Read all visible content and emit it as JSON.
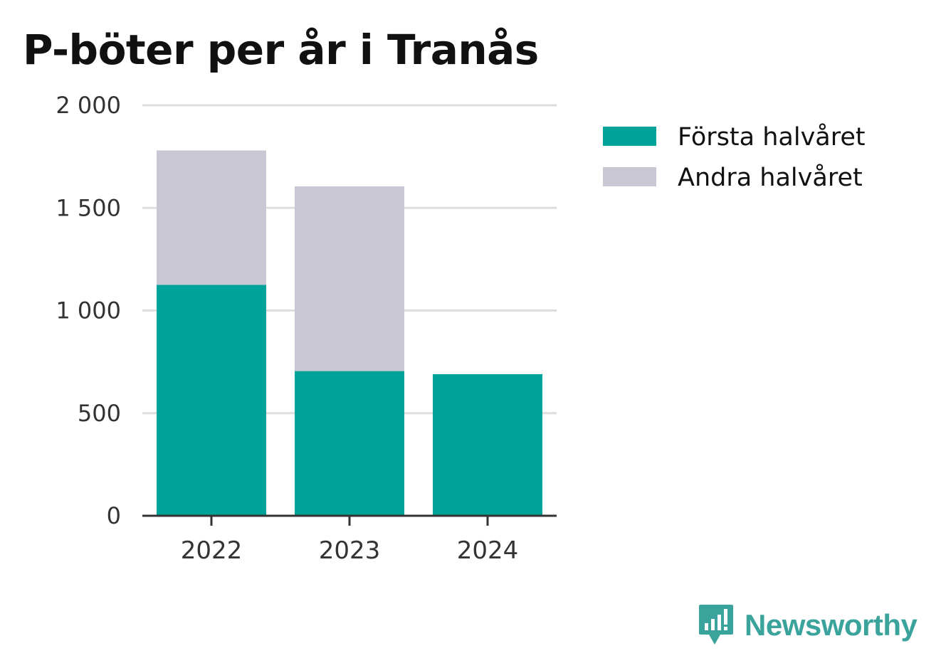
{
  "chart_data": {
    "type": "bar",
    "stacked": true,
    "title": "P-böter per år i Tranås",
    "categories": [
      "2022",
      "2023",
      "2024"
    ],
    "series": [
      {
        "name": "Första halvåret",
        "color": "#00a39a",
        "values": [
          1125,
          705,
          690
        ]
      },
      {
        "name": "Andra halvåret",
        "color": "#c8c7d3",
        "values": [
          655,
          900,
          0
        ]
      }
    ],
    "ylim": [
      0,
      2000
    ],
    "yticks": [
      0,
      500,
      1000,
      1500,
      2000
    ],
    "ytick_labels": [
      "0",
      "500",
      "1 000",
      "1 500",
      "2 000"
    ],
    "grid": true,
    "legend_position": "right"
  },
  "brand": {
    "name": "Newsworthy",
    "color": "#3aa39b",
    "icon": "newsworthy-logo-icon"
  }
}
